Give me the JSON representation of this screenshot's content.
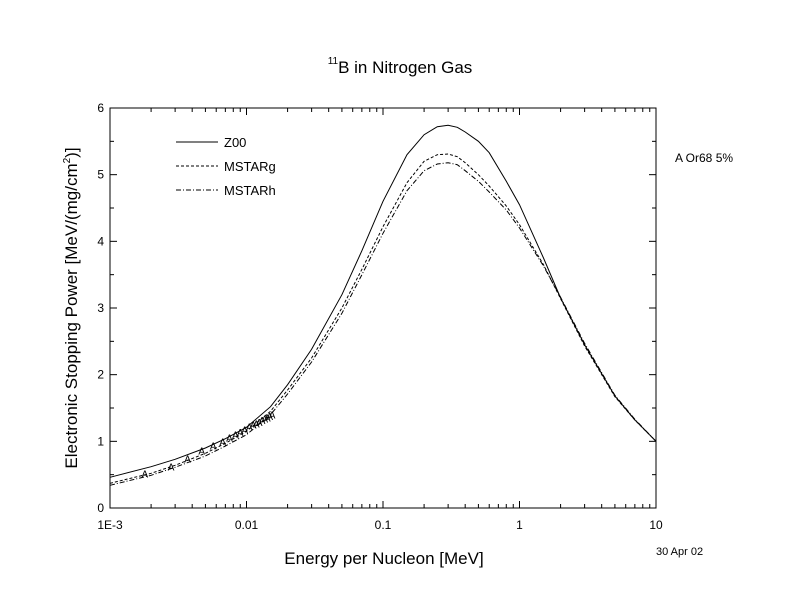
{
  "chart_data": {
    "type": "line",
    "title": {
      "superscript": "11",
      "text": "B in Nitrogen Gas"
    },
    "xlabel": "Energy per Nucleon [MeV]",
    "ylabel": {
      "prefix": "Electronic Stopping Power [MeV/(mg/cm",
      "sup": "2",
      "suffix": ")]"
    },
    "x_scale": "log",
    "xlim": [
      0.001,
      10
    ],
    "ylim": [
      0,
      6
    ],
    "x_ticks": [
      {
        "value": 0.001,
        "label": "1E-3"
      },
      {
        "value": 0.01,
        "label": "0.01"
      },
      {
        "value": 0.1,
        "label": "0.1"
      },
      {
        "value": 1,
        "label": "1"
      },
      {
        "value": 10,
        "label": "10"
      }
    ],
    "y_ticks": [
      {
        "value": 0,
        "label": "0"
      },
      {
        "value": 1,
        "label": "1"
      },
      {
        "value": 2,
        "label": "2"
      },
      {
        "value": 3,
        "label": "3"
      },
      {
        "value": 4,
        "label": "4"
      },
      {
        "value": 5,
        "label": "5"
      },
      {
        "value": 6,
        "label": "6"
      }
    ],
    "grid": false,
    "legend_position": "top-left",
    "series": [
      {
        "name": "Z00",
        "style": "solid",
        "x": [
          0.001,
          0.002,
          0.003,
          0.005,
          0.007,
          0.01,
          0.015,
          0.02,
          0.03,
          0.05,
          0.07,
          0.1,
          0.15,
          0.2,
          0.25,
          0.3,
          0.35,
          0.4,
          0.5,
          0.6,
          0.8,
          1,
          1.5,
          2,
          3,
          5,
          7,
          10
        ],
        "y": [
          0.46,
          0.62,
          0.73,
          0.9,
          1.04,
          1.21,
          1.52,
          1.85,
          2.38,
          3.2,
          3.86,
          4.6,
          5.3,
          5.6,
          5.72,
          5.74,
          5.71,
          5.64,
          5.5,
          5.33,
          4.9,
          4.55,
          3.75,
          3.15,
          2.45,
          1.68,
          1.32,
          1.0
        ]
      },
      {
        "name": "MSTARg",
        "style": "dashed",
        "x": [
          0.001,
          0.002,
          0.003,
          0.005,
          0.007,
          0.01,
          0.015,
          0.02,
          0.03,
          0.05,
          0.07,
          0.1,
          0.15,
          0.2,
          0.25,
          0.3,
          0.35,
          0.4,
          0.5,
          0.6,
          0.8,
          1,
          1.5,
          2,
          3,
          5,
          7,
          10
        ],
        "y": [
          0.37,
          0.52,
          0.64,
          0.82,
          0.97,
          1.15,
          1.45,
          1.77,
          2.25,
          3.0,
          3.58,
          4.22,
          4.88,
          5.2,
          5.3,
          5.31,
          5.27,
          5.18,
          5.0,
          4.83,
          4.53,
          4.25,
          3.65,
          3.14,
          2.43,
          1.67,
          1.32,
          1.0
        ]
      },
      {
        "name": "MSTARh",
        "style": "dashdot",
        "x": [
          0.001,
          0.002,
          0.003,
          0.005,
          0.007,
          0.01,
          0.015,
          0.02,
          0.03,
          0.05,
          0.07,
          0.1,
          0.15,
          0.2,
          0.25,
          0.3,
          0.35,
          0.4,
          0.5,
          0.6,
          0.8,
          1,
          1.5,
          2,
          3,
          5,
          7,
          10
        ],
        "y": [
          0.34,
          0.49,
          0.61,
          0.78,
          0.93,
          1.1,
          1.4,
          1.71,
          2.19,
          2.92,
          3.5,
          4.12,
          4.76,
          5.06,
          5.16,
          5.18,
          5.15,
          5.06,
          4.9,
          4.74,
          4.47,
          4.2,
          3.63,
          3.16,
          2.47,
          1.69,
          1.33,
          1.0
        ]
      }
    ],
    "markers": {
      "name": "A",
      "symbol": "A",
      "x": [
        0.0018,
        0.0028,
        0.0037,
        0.0047,
        0.0057,
        0.0067,
        0.0075,
        0.0083,
        0.009,
        0.0097,
        0.0105,
        0.0112,
        0.0118,
        0.0124,
        0.013,
        0.0136,
        0.0142,
        0.0148,
        0.0154
      ],
      "y": [
        0.52,
        0.62,
        0.74,
        0.86,
        0.94,
        1.0,
        1.06,
        1.1,
        1.14,
        1.18,
        1.22,
        1.25,
        1.27,
        1.29,
        1.32,
        1.34,
        1.36,
        1.38,
        1.4
      ]
    },
    "annotations": [
      "A Or68  5%",
      "30 Apr 02"
    ]
  }
}
